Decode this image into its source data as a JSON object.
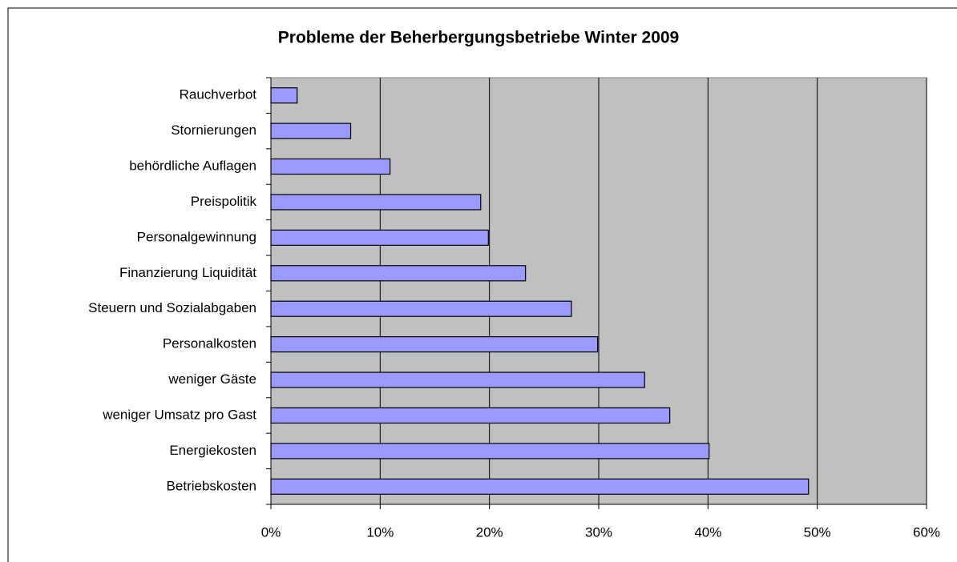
{
  "chart_data": {
    "type": "bar",
    "orientation": "horizontal",
    "title": "Probleme der Beherbergungsbetriebe Winter 2009",
    "categories": [
      "Rauchverbot",
      "Stornierungen",
      "behördliche Auflagen",
      "Preispolitik",
      "Personalgewinnung",
      "Finanzierung Liquidität",
      "Steuern und Sozialabgaben",
      "Personalkosten",
      "weniger Gäste",
      "weniger Umsatz pro Gast",
      "Energiekosten",
      "Betriebskosten"
    ],
    "values": [
      2.4,
      7.3,
      10.9,
      19.2,
      19.9,
      23.3,
      27.5,
      29.9,
      34.2,
      36.5,
      40.1,
      49.2
    ],
    "color": "#9999ff",
    "xlim": [
      0,
      60
    ],
    "xticks": [
      {
        "value": 0,
        "label": "0%"
      },
      {
        "value": 10,
        "label": "10%"
      },
      {
        "value": 20,
        "label": "20%"
      },
      {
        "value": 30,
        "label": "30%"
      },
      {
        "value": 40,
        "label": "40%"
      },
      {
        "value": 50,
        "label": "50%"
      },
      {
        "value": 60,
        "label": "60%"
      }
    ],
    "grid": true
  }
}
